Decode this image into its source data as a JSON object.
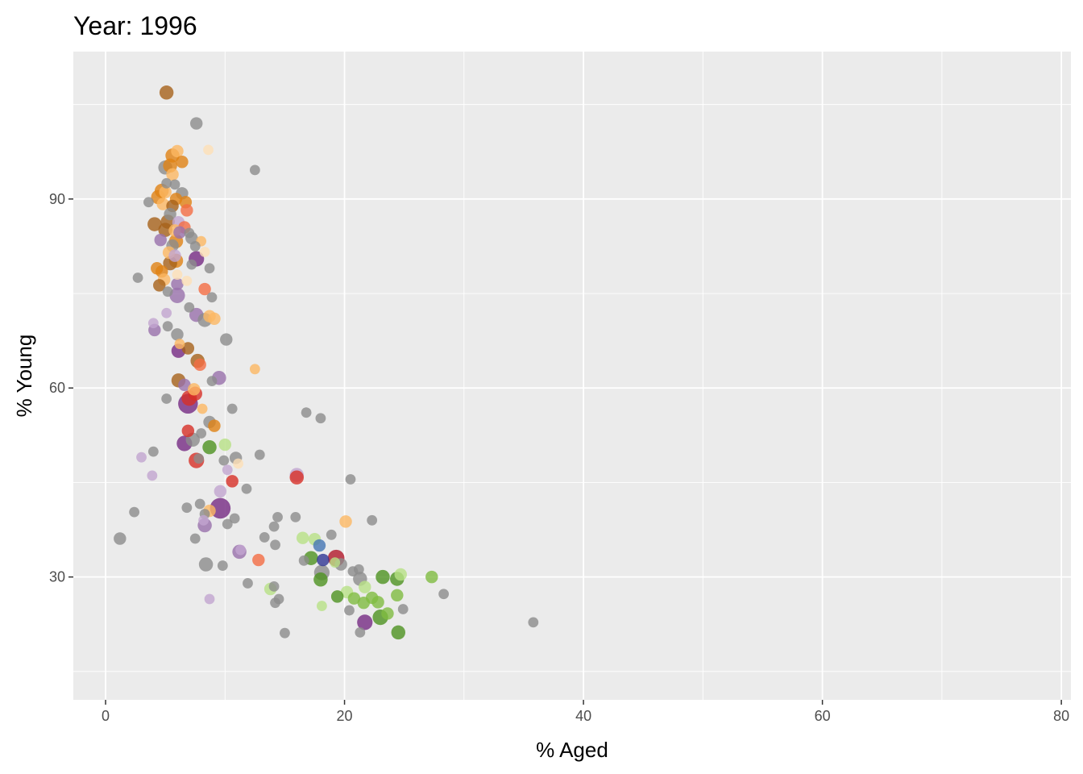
{
  "chart_data": {
    "type": "scatter",
    "title": "Year: 1996",
    "xlabel": "% Aged",
    "ylabel": "% Young",
    "xlim": [
      -2.7,
      80.8
    ],
    "ylim": [
      10.5,
      113.4
    ],
    "x_ticks": [
      0,
      20,
      40,
      60,
      80
    ],
    "y_ticks": [
      30,
      60,
      90
    ],
    "x_tick_labels": [
      "0",
      "20",
      "40",
      "60",
      "80"
    ],
    "y_tick_labels": [
      "30",
      "60",
      "90"
    ],
    "grid": true,
    "legend": "none",
    "panel_background": "#ebebeb",
    "colors": {
      "grey": "#8c8c8c",
      "brown": "#a6611a",
      "orange": "#e08214",
      "light_orange": "#fdb863",
      "pale_orange": "#fee0b6",
      "purple": "#762a83",
      "light_purple": "#9970ab",
      "pale_purple": "#c2a5cf",
      "red": "#d73027",
      "salmon": "#f46d43",
      "crimson": "#b2182b",
      "dark_green": "#1b7837",
      "green": "#4d9221",
      "light_green": "#7fbc41",
      "pale_green": "#b8e186",
      "blue": "#4575b4",
      "navy": "#313695"
    },
    "points": [
      {
        "x": 5.1,
        "y": 106.9,
        "size": 3,
        "color": "brown"
      },
      {
        "x": 7.6,
        "y": 102.0,
        "size": 2,
        "color": "grey"
      },
      {
        "x": 12.5,
        "y": 94.6,
        "size": 1,
        "color": "grey"
      },
      {
        "x": 8.6,
        "y": 97.8,
        "size": 1,
        "color": "pale_orange"
      },
      {
        "x": 6.0,
        "y": 97.6,
        "size": 2,
        "color": "light_orange"
      },
      {
        "x": 5.6,
        "y": 96.9,
        "size": 3,
        "color": "orange"
      },
      {
        "x": 6.4,
        "y": 95.9,
        "size": 2,
        "color": "orange"
      },
      {
        "x": 5.0,
        "y": 95.0,
        "size": 3,
        "color": "grey"
      },
      {
        "x": 5.4,
        "y": 95.3,
        "size": 3,
        "color": "orange"
      },
      {
        "x": 5.6,
        "y": 93.9,
        "size": 2,
        "color": "light_orange"
      },
      {
        "x": 5.1,
        "y": 92.5,
        "size": 1,
        "color": "grey"
      },
      {
        "x": 5.8,
        "y": 92.3,
        "size": 1,
        "color": "grey"
      },
      {
        "x": 4.7,
        "y": 91.3,
        "size": 3,
        "color": "orange"
      },
      {
        "x": 5.0,
        "y": 91.1,
        "size": 2,
        "color": "light_orange"
      },
      {
        "x": 6.4,
        "y": 90.9,
        "size": 2,
        "color": "grey"
      },
      {
        "x": 4.4,
        "y": 90.3,
        "size": 3,
        "color": "orange"
      },
      {
        "x": 5.9,
        "y": 90.0,
        "size": 2,
        "color": "orange"
      },
      {
        "x": 3.6,
        "y": 89.5,
        "size": 1,
        "color": "grey"
      },
      {
        "x": 6.7,
        "y": 89.5,
        "size": 2,
        "color": "orange"
      },
      {
        "x": 4.8,
        "y": 89.2,
        "size": 2,
        "color": "light_orange"
      },
      {
        "x": 5.6,
        "y": 88.9,
        "size": 2,
        "color": "brown"
      },
      {
        "x": 6.8,
        "y": 88.2,
        "size": 2,
        "color": "salmon"
      },
      {
        "x": 5.4,
        "y": 87.6,
        "size": 2,
        "color": "grey"
      },
      {
        "x": 5.2,
        "y": 86.4,
        "size": 3,
        "color": "brown"
      },
      {
        "x": 6.1,
        "y": 86.3,
        "size": 2,
        "color": "pale_purple"
      },
      {
        "x": 4.1,
        "y": 86.0,
        "size": 3,
        "color": "brown"
      },
      {
        "x": 6.6,
        "y": 85.5,
        "size": 2,
        "color": "salmon"
      },
      {
        "x": 5.0,
        "y": 85.1,
        "size": 3,
        "color": "brown"
      },
      {
        "x": 5.8,
        "y": 85.0,
        "size": 2,
        "color": "light_orange"
      },
      {
        "x": 6.2,
        "y": 84.7,
        "size": 2,
        "color": "light_purple"
      },
      {
        "x": 7.0,
        "y": 84.6,
        "size": 1,
        "color": "grey"
      },
      {
        "x": 7.2,
        "y": 83.8,
        "size": 2,
        "color": "grey"
      },
      {
        "x": 4.6,
        "y": 83.5,
        "size": 2,
        "color": "light_purple"
      },
      {
        "x": 5.9,
        "y": 83.3,
        "size": 3,
        "color": "orange"
      },
      {
        "x": 8.0,
        "y": 83.3,
        "size": 1,
        "color": "light_orange"
      },
      {
        "x": 5.6,
        "y": 82.6,
        "size": 2,
        "color": "grey"
      },
      {
        "x": 7.5,
        "y": 82.5,
        "size": 1,
        "color": "grey"
      },
      {
        "x": 5.3,
        "y": 81.5,
        "size": 2,
        "color": "light_orange"
      },
      {
        "x": 8.3,
        "y": 81.6,
        "size": 1,
        "color": "pale_orange"
      },
      {
        "x": 5.8,
        "y": 81.0,
        "size": 2,
        "color": "pale_purple"
      },
      {
        "x": 7.6,
        "y": 80.5,
        "size": 4,
        "color": "purple"
      },
      {
        "x": 5.9,
        "y": 80.2,
        "size": 3,
        "color": "orange"
      },
      {
        "x": 5.4,
        "y": 79.8,
        "size": 3,
        "color": "brown"
      },
      {
        "x": 7.2,
        "y": 79.6,
        "size": 1,
        "color": "grey"
      },
      {
        "x": 4.3,
        "y": 79.0,
        "size": 2,
        "color": "orange"
      },
      {
        "x": 8.7,
        "y": 79.0,
        "size": 1,
        "color": "grey"
      },
      {
        "x": 4.7,
        "y": 78.5,
        "size": 2,
        "color": "orange"
      },
      {
        "x": 6.0,
        "y": 78.0,
        "size": 1,
        "color": "pale_orange"
      },
      {
        "x": 2.7,
        "y": 77.5,
        "size": 1,
        "color": "grey"
      },
      {
        "x": 4.9,
        "y": 77.2,
        "size": 2,
        "color": "light_orange"
      },
      {
        "x": 6.8,
        "y": 77.0,
        "size": 1,
        "color": "pale_orange"
      },
      {
        "x": 6.0,
        "y": 76.5,
        "size": 2,
        "color": "light_purple"
      },
      {
        "x": 4.5,
        "y": 76.3,
        "size": 2,
        "color": "brown"
      },
      {
        "x": 8.3,
        "y": 75.7,
        "size": 2,
        "color": "salmon"
      },
      {
        "x": 5.2,
        "y": 75.3,
        "size": 1,
        "color": "grey"
      },
      {
        "x": 6.0,
        "y": 74.7,
        "size": 4,
        "color": "light_purple"
      },
      {
        "x": 8.9,
        "y": 74.4,
        "size": 1,
        "color": "grey"
      },
      {
        "x": 7.0,
        "y": 72.8,
        "size": 1,
        "color": "grey"
      },
      {
        "x": 5.1,
        "y": 71.9,
        "size": 1,
        "color": "pale_purple"
      },
      {
        "x": 7.6,
        "y": 71.6,
        "size": 3,
        "color": "light_purple"
      },
      {
        "x": 8.7,
        "y": 71.4,
        "size": 2,
        "color": "light_orange"
      },
      {
        "x": 9.1,
        "y": 71.0,
        "size": 2,
        "color": "light_orange"
      },
      {
        "x": 8.3,
        "y": 70.8,
        "size": 3,
        "color": "grey"
      },
      {
        "x": 4.0,
        "y": 70.3,
        "size": 1,
        "color": "pale_purple"
      },
      {
        "x": 5.2,
        "y": 69.8,
        "size": 1,
        "color": "grey"
      },
      {
        "x": 4.1,
        "y": 69.2,
        "size": 2,
        "color": "light_purple"
      },
      {
        "x": 6.0,
        "y": 68.5,
        "size": 2,
        "color": "grey"
      },
      {
        "x": 10.1,
        "y": 67.7,
        "size": 2,
        "color": "grey"
      },
      {
        "x": 6.2,
        "y": 67.0,
        "size": 1,
        "color": "light_orange"
      },
      {
        "x": 6.9,
        "y": 66.3,
        "size": 2,
        "color": "brown"
      },
      {
        "x": 6.1,
        "y": 65.9,
        "size": 3,
        "color": "purple"
      },
      {
        "x": 7.7,
        "y": 64.3,
        "size": 3,
        "color": "brown"
      },
      {
        "x": 7.9,
        "y": 63.7,
        "size": 2,
        "color": "salmon"
      },
      {
        "x": 12.5,
        "y": 63.0,
        "size": 1,
        "color": "light_orange"
      },
      {
        "x": 9.5,
        "y": 61.6,
        "size": 3,
        "color": "light_purple"
      },
      {
        "x": 6.1,
        "y": 61.2,
        "size": 3,
        "color": "brown"
      },
      {
        "x": 8.9,
        "y": 61.1,
        "size": 1,
        "color": "grey"
      },
      {
        "x": 6.6,
        "y": 60.5,
        "size": 2,
        "color": "light_purple"
      },
      {
        "x": 7.4,
        "y": 59.8,
        "size": 2,
        "color": "light_orange"
      },
      {
        "x": 7.5,
        "y": 59.1,
        "size": 3,
        "color": "red"
      },
      {
        "x": 7.0,
        "y": 58.4,
        "size": 4,
        "color": "red"
      },
      {
        "x": 5.1,
        "y": 58.3,
        "size": 1,
        "color": "grey"
      },
      {
        "x": 6.9,
        "y": 57.5,
        "size": 8,
        "color": "purple"
      },
      {
        "x": 8.1,
        "y": 56.7,
        "size": 1,
        "color": "light_orange"
      },
      {
        "x": 10.6,
        "y": 56.7,
        "size": 1,
        "color": "grey"
      },
      {
        "x": 16.8,
        "y": 56.1,
        "size": 1,
        "color": "grey"
      },
      {
        "x": 18.0,
        "y": 55.2,
        "size": 1,
        "color": "grey"
      },
      {
        "x": 8.7,
        "y": 54.6,
        "size": 2,
        "color": "grey"
      },
      {
        "x": 9.1,
        "y": 54.0,
        "size": 2,
        "color": "orange"
      },
      {
        "x": 6.9,
        "y": 53.2,
        "size": 2,
        "color": "red"
      },
      {
        "x": 8.0,
        "y": 52.8,
        "size": 1,
        "color": "grey"
      },
      {
        "x": 6.6,
        "y": 51.2,
        "size": 4,
        "color": "purple"
      },
      {
        "x": 7.3,
        "y": 51.8,
        "size": 3,
        "color": "grey"
      },
      {
        "x": 10.0,
        "y": 51.0,
        "size": 2,
        "color": "pale_green"
      },
      {
        "x": 8.7,
        "y": 50.6,
        "size": 3,
        "color": "green"
      },
      {
        "x": 4.0,
        "y": 49.9,
        "size": 1,
        "color": "grey"
      },
      {
        "x": 12.9,
        "y": 49.4,
        "size": 1,
        "color": "grey"
      },
      {
        "x": 3.0,
        "y": 49.0,
        "size": 1,
        "color": "pale_purple"
      },
      {
        "x": 7.6,
        "y": 48.5,
        "size": 4,
        "color": "red"
      },
      {
        "x": 7.8,
        "y": 48.8,
        "size": 1,
        "color": "grey"
      },
      {
        "x": 10.9,
        "y": 48.9,
        "size": 2,
        "color": "grey"
      },
      {
        "x": 9.9,
        "y": 48.5,
        "size": 1,
        "color": "grey"
      },
      {
        "x": 11.1,
        "y": 48.0,
        "size": 1,
        "color": "pale_orange"
      },
      {
        "x": 10.2,
        "y": 47.0,
        "size": 1,
        "color": "pale_purple"
      },
      {
        "x": 3.9,
        "y": 46.1,
        "size": 1,
        "color": "pale_purple"
      },
      {
        "x": 16.0,
        "y": 46.2,
        "size": 3,
        "color": "pale_purple"
      },
      {
        "x": 16.0,
        "y": 45.8,
        "size": 3,
        "color": "red"
      },
      {
        "x": 10.6,
        "y": 45.2,
        "size": 2,
        "color": "red"
      },
      {
        "x": 20.5,
        "y": 45.5,
        "size": 1,
        "color": "grey"
      },
      {
        "x": 11.8,
        "y": 44.0,
        "size": 1,
        "color": "grey"
      },
      {
        "x": 9.6,
        "y": 43.6,
        "size": 2,
        "color": "pale_purple"
      },
      {
        "x": 7.9,
        "y": 41.6,
        "size": 1,
        "color": "grey"
      },
      {
        "x": 6.8,
        "y": 41.0,
        "size": 1,
        "color": "grey"
      },
      {
        "x": 9.6,
        "y": 40.9,
        "size": 9,
        "color": "purple"
      },
      {
        "x": 8.7,
        "y": 40.5,
        "size": 2,
        "color": "light_orange"
      },
      {
        "x": 8.3,
        "y": 40.0,
        "size": 1,
        "color": "grey"
      },
      {
        "x": 2.4,
        "y": 40.3,
        "size": 1,
        "color": "grey"
      },
      {
        "x": 14.4,
        "y": 39.5,
        "size": 1,
        "color": "grey"
      },
      {
        "x": 15.9,
        "y": 39.5,
        "size": 1,
        "color": "grey"
      },
      {
        "x": 10.8,
        "y": 39.3,
        "size": 1,
        "color": "grey"
      },
      {
        "x": 8.2,
        "y": 39.0,
        "size": 1,
        "color": "pale_purple"
      },
      {
        "x": 22.3,
        "y": 39.0,
        "size": 1,
        "color": "grey"
      },
      {
        "x": 20.1,
        "y": 38.8,
        "size": 2,
        "color": "light_orange"
      },
      {
        "x": 10.2,
        "y": 38.4,
        "size": 1,
        "color": "grey"
      },
      {
        "x": 8.3,
        "y": 38.2,
        "size": 3,
        "color": "light_purple"
      },
      {
        "x": 14.1,
        "y": 38.0,
        "size": 1,
        "color": "grey"
      },
      {
        "x": 18.9,
        "y": 36.7,
        "size": 1,
        "color": "grey"
      },
      {
        "x": 13.3,
        "y": 36.3,
        "size": 1,
        "color": "grey"
      },
      {
        "x": 1.2,
        "y": 36.1,
        "size": 2,
        "color": "grey"
      },
      {
        "x": 7.5,
        "y": 36.1,
        "size": 1,
        "color": "grey"
      },
      {
        "x": 16.5,
        "y": 36.2,
        "size": 2,
        "color": "pale_green"
      },
      {
        "x": 17.5,
        "y": 36.0,
        "size": 2,
        "color": "pale_green"
      },
      {
        "x": 14.2,
        "y": 35.1,
        "size": 1,
        "color": "grey"
      },
      {
        "x": 17.9,
        "y": 35.0,
        "size": 2,
        "color": "blue"
      },
      {
        "x": 11.2,
        "y": 34.0,
        "size": 3,
        "color": "light_purple"
      },
      {
        "x": 11.3,
        "y": 34.3,
        "size": 1,
        "color": "pale_purple"
      },
      {
        "x": 19.3,
        "y": 33.0,
        "size": 5,
        "color": "crimson"
      },
      {
        "x": 17.2,
        "y": 33.0,
        "size": 3,
        "color": "green"
      },
      {
        "x": 18.2,
        "y": 32.7,
        "size": 2,
        "color": "navy"
      },
      {
        "x": 12.8,
        "y": 32.7,
        "size": 2,
        "color": "salmon"
      },
      {
        "x": 16.6,
        "y": 32.6,
        "size": 1,
        "color": "grey"
      },
      {
        "x": 8.4,
        "y": 32.0,
        "size": 3,
        "color": "grey"
      },
      {
        "x": 9.8,
        "y": 31.8,
        "size": 1,
        "color": "grey"
      },
      {
        "x": 19.7,
        "y": 32.0,
        "size": 2,
        "color": "grey"
      },
      {
        "x": 19.2,
        "y": 32.3,
        "size": 1,
        "color": "pale_green"
      },
      {
        "x": 21.2,
        "y": 31.2,
        "size": 1,
        "color": "grey"
      },
      {
        "x": 20.7,
        "y": 30.9,
        "size": 1,
        "color": "grey"
      },
      {
        "x": 18.1,
        "y": 30.7,
        "size": 4,
        "color": "grey"
      },
      {
        "x": 24.7,
        "y": 30.4,
        "size": 2,
        "color": "pale_green"
      },
      {
        "x": 23.2,
        "y": 30.0,
        "size": 3,
        "color": "green"
      },
      {
        "x": 27.3,
        "y": 30.0,
        "size": 2,
        "color": "light_green"
      },
      {
        "x": 21.3,
        "y": 29.7,
        "size": 3,
        "color": "grey"
      },
      {
        "x": 24.4,
        "y": 29.7,
        "size": 3,
        "color": "green"
      },
      {
        "x": 18.0,
        "y": 29.6,
        "size": 3,
        "color": "green"
      },
      {
        "x": 11.9,
        "y": 29.0,
        "size": 1,
        "color": "grey"
      },
      {
        "x": 21.7,
        "y": 28.4,
        "size": 2,
        "color": "pale_green"
      },
      {
        "x": 14.1,
        "y": 28.5,
        "size": 1,
        "color": "grey"
      },
      {
        "x": 13.8,
        "y": 28.1,
        "size": 2,
        "color": "pale_green"
      },
      {
        "x": 20.2,
        "y": 27.6,
        "size": 2,
        "color": "pale_green"
      },
      {
        "x": 28.3,
        "y": 27.3,
        "size": 1,
        "color": "grey"
      },
      {
        "x": 19.4,
        "y": 26.9,
        "size": 2,
        "color": "green"
      },
      {
        "x": 24.4,
        "y": 27.1,
        "size": 2,
        "color": "light_green"
      },
      {
        "x": 20.8,
        "y": 26.6,
        "size": 2,
        "color": "light_green"
      },
      {
        "x": 22.3,
        "y": 26.7,
        "size": 2,
        "color": "light_green"
      },
      {
        "x": 8.7,
        "y": 26.5,
        "size": 1,
        "color": "pale_purple"
      },
      {
        "x": 14.5,
        "y": 26.5,
        "size": 1,
        "color": "grey"
      },
      {
        "x": 22.8,
        "y": 26.0,
        "size": 2,
        "color": "light_green"
      },
      {
        "x": 14.2,
        "y": 25.9,
        "size": 1,
        "color": "grey"
      },
      {
        "x": 21.6,
        "y": 25.9,
        "size": 2,
        "color": "light_green"
      },
      {
        "x": 18.1,
        "y": 25.4,
        "size": 1,
        "color": "pale_green"
      },
      {
        "x": 20.4,
        "y": 24.7,
        "size": 1,
        "color": "grey"
      },
      {
        "x": 24.9,
        "y": 24.9,
        "size": 1,
        "color": "grey"
      },
      {
        "x": 23.6,
        "y": 24.2,
        "size": 2,
        "color": "light_green"
      },
      {
        "x": 23.0,
        "y": 23.6,
        "size": 4,
        "color": "green"
      },
      {
        "x": 21.7,
        "y": 22.8,
        "size": 4,
        "color": "purple"
      },
      {
        "x": 35.8,
        "y": 22.8,
        "size": 1,
        "color": "grey"
      },
      {
        "x": 15.0,
        "y": 21.1,
        "size": 1,
        "color": "grey"
      },
      {
        "x": 21.3,
        "y": 21.2,
        "size": 1,
        "color": "grey"
      },
      {
        "x": 24.5,
        "y": 21.2,
        "size": 3,
        "color": "green"
      }
    ]
  }
}
